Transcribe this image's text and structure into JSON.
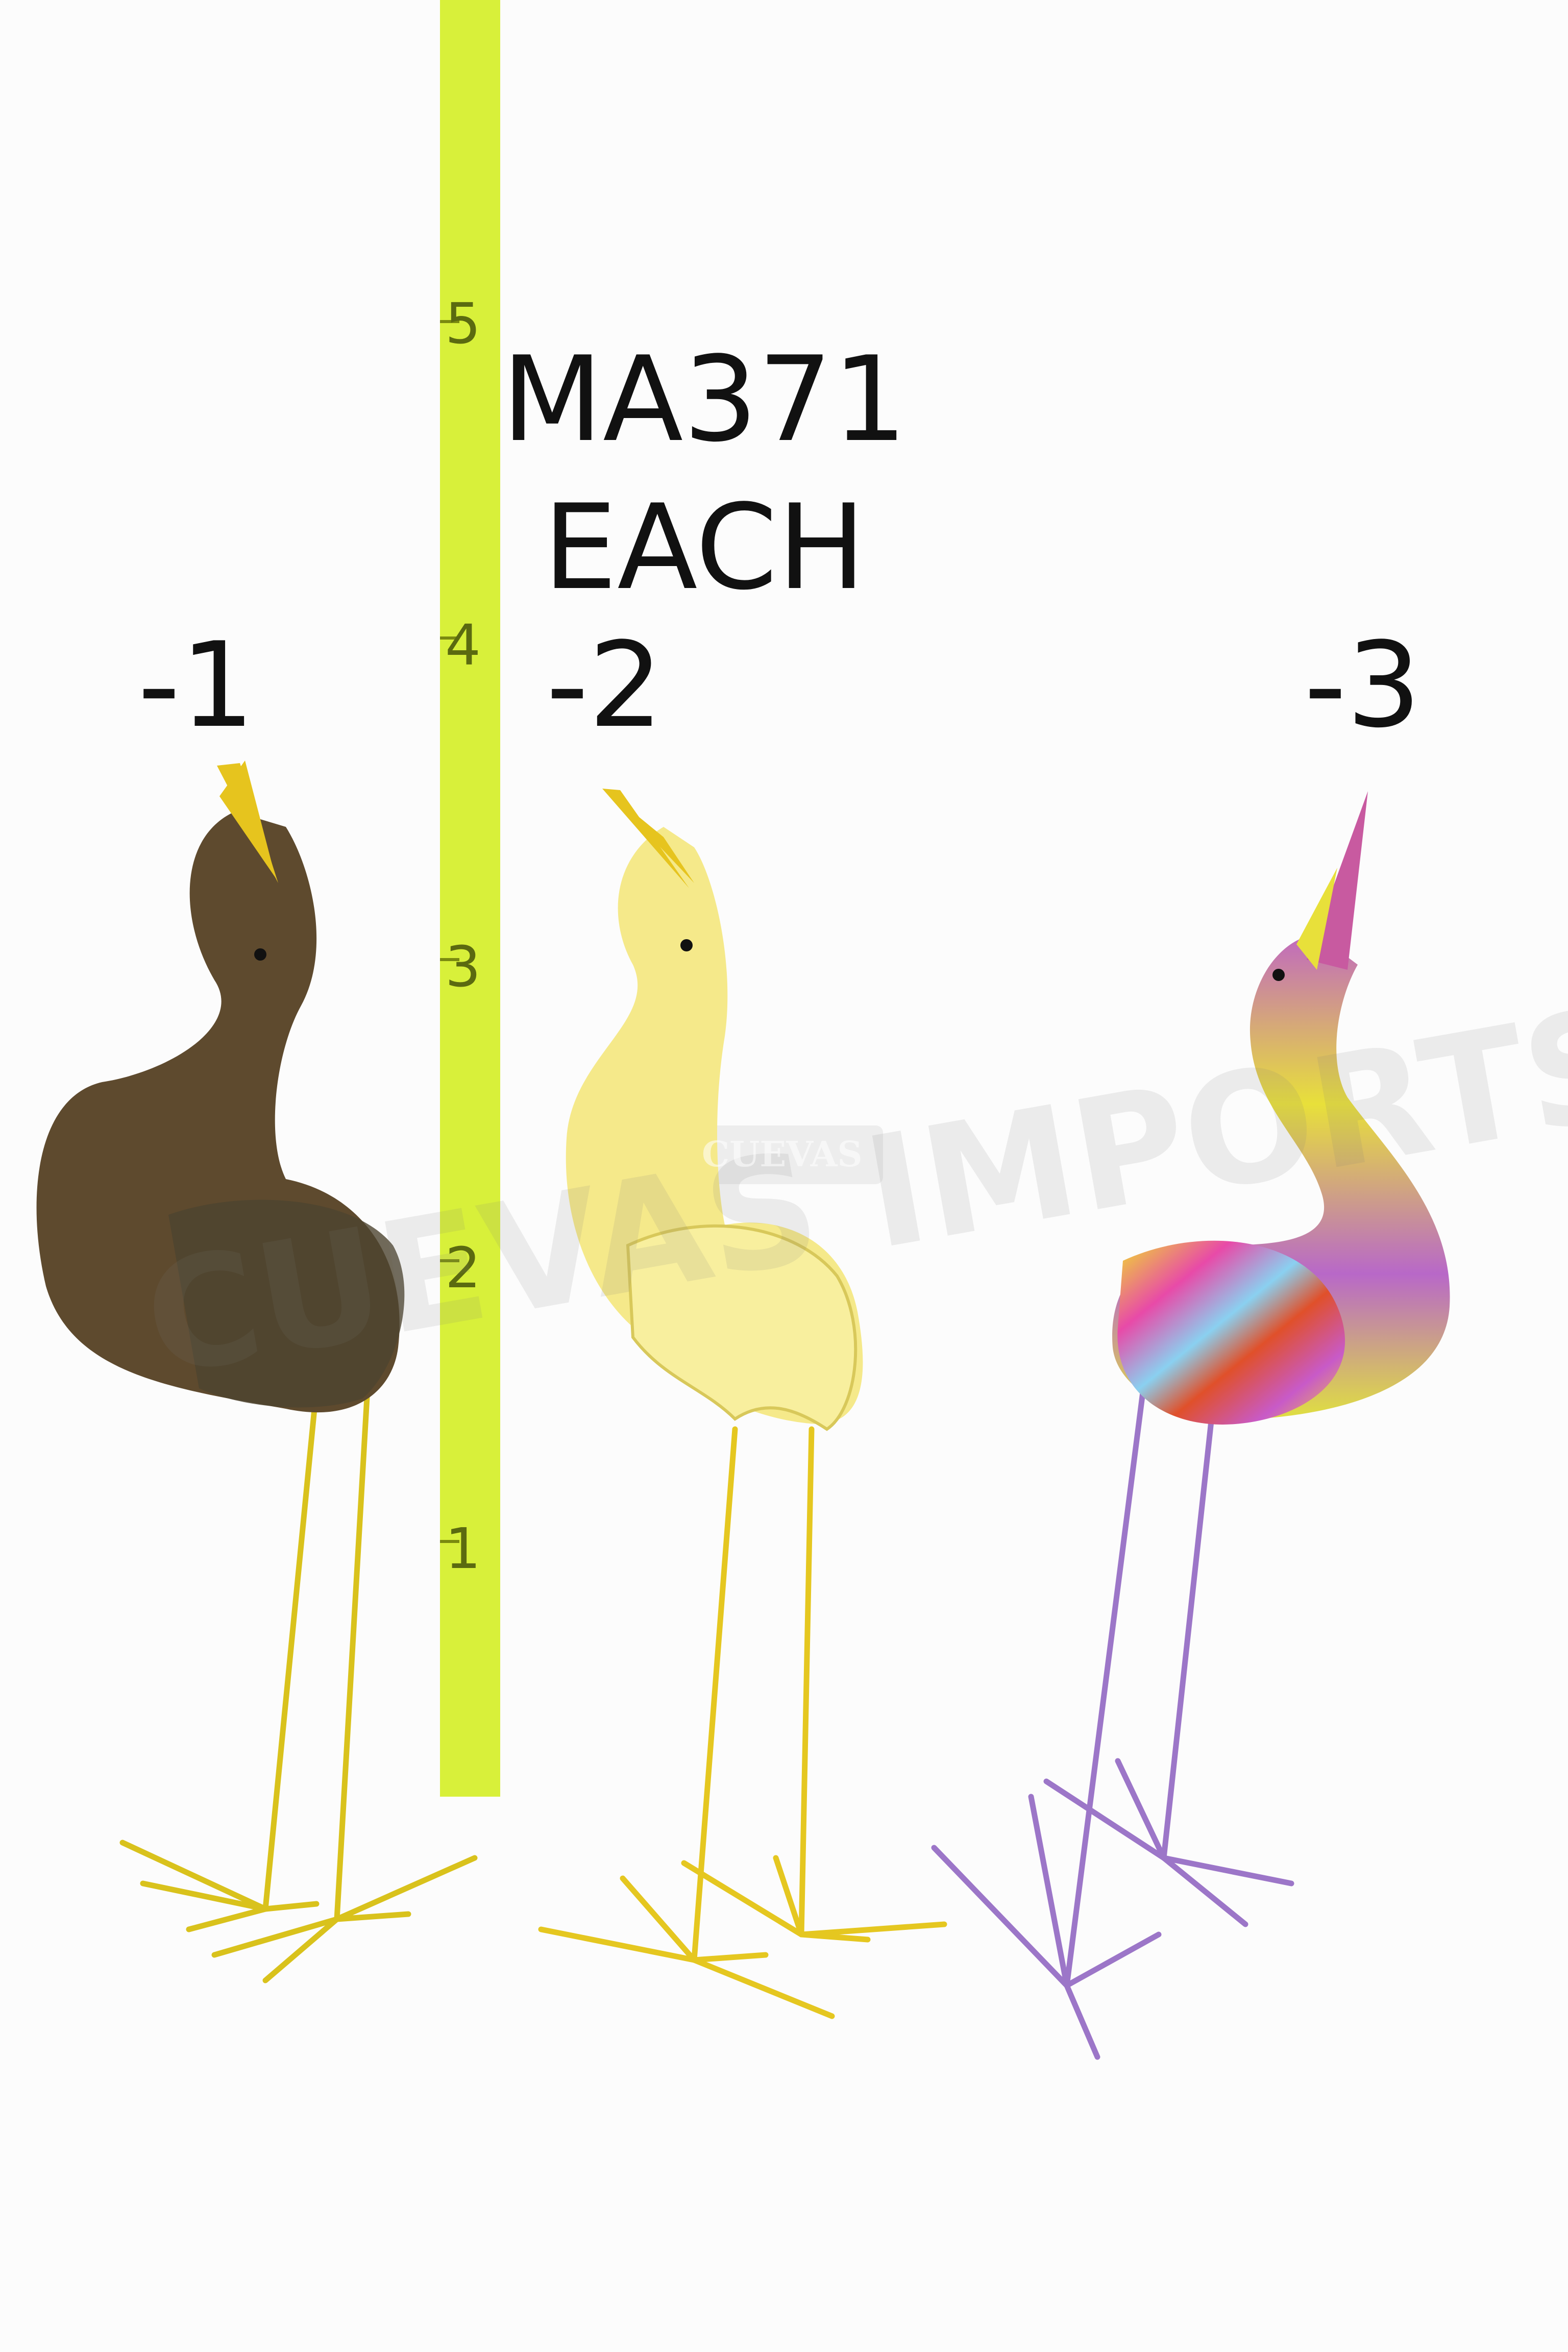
{
  "product": {
    "code": "MA371",
    "pricing": "EACH"
  },
  "variants": [
    {
      "label": "-1",
      "finish": "brown"
    },
    {
      "label": "-2",
      "finish": "yellow"
    },
    {
      "label": "-3",
      "finish": "multicolor"
    }
  ],
  "measuring_stick": {
    "unit_marks": [
      "1",
      "2",
      "3",
      "4",
      "5"
    ],
    "color": "#d8f03a"
  },
  "watermark": {
    "text": "CUEVAS IMPORTS",
    "badge": "CUEVAS"
  },
  "colors": {
    "background": "#fcfcfc",
    "brown_body": "#5e4a2e",
    "yellow_body": "#f5e98a",
    "legs": "#d9c21c",
    "beak": "#e6c41e"
  }
}
